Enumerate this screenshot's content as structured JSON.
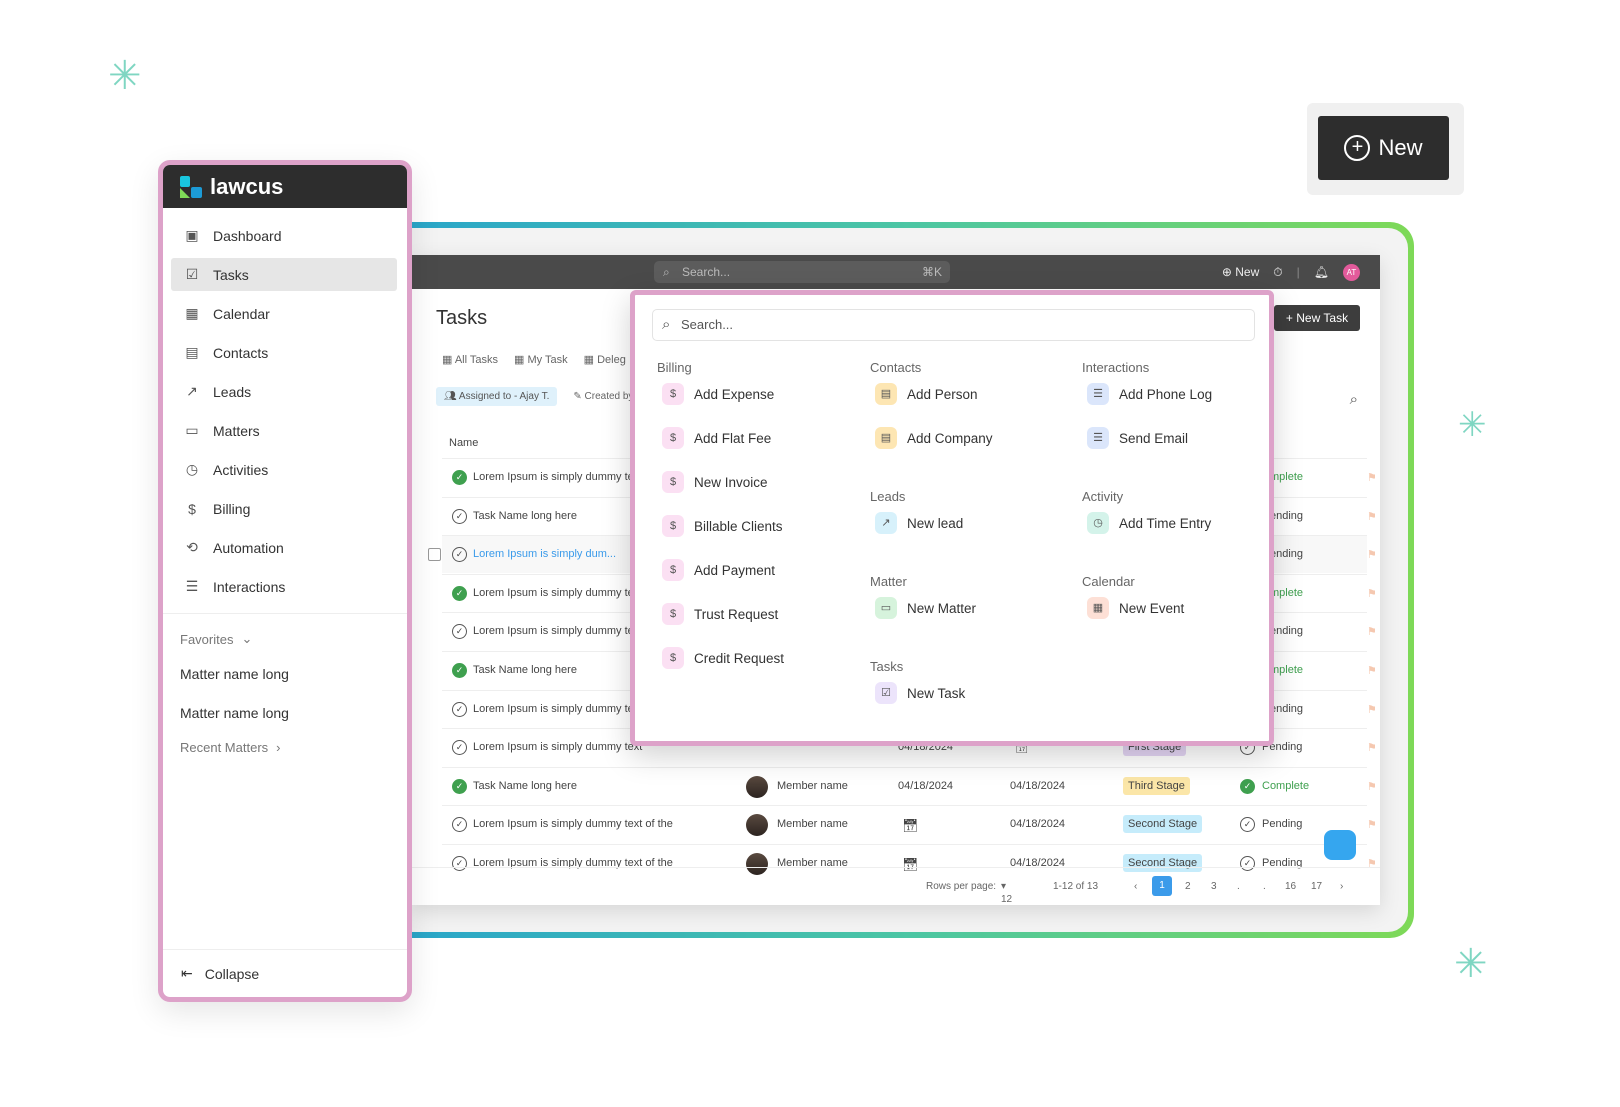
{
  "colors": {
    "accent_pink": "#dda2c9",
    "brand_dark": "#2d2d2d",
    "complete": "#3fa04f",
    "link": "#3b9bea",
    "frame_start": "#2aa6c9",
    "frame_end": "#7ed957"
  },
  "callout": {
    "label": "New",
    "icon": "plus-circle-icon"
  },
  "sidebar": {
    "brand": "lawcus",
    "items": [
      {
        "label": "Dashboard",
        "icon": "grid-icon",
        "active": false
      },
      {
        "label": "Tasks",
        "icon": "clipboard-check-icon",
        "active": true
      },
      {
        "label": "Calendar",
        "icon": "calendar-icon",
        "active": false
      },
      {
        "label": "Contacts",
        "icon": "contact-card-icon",
        "active": false
      },
      {
        "label": "Leads",
        "icon": "trend-up-icon",
        "active": false
      },
      {
        "label": "Matters",
        "icon": "briefcase-icon",
        "active": false
      },
      {
        "label": "Activities",
        "icon": "stopwatch-icon",
        "active": false
      },
      {
        "label": "Billing",
        "icon": "dollar-circle-icon",
        "active": false
      },
      {
        "label": "Automation",
        "icon": "repeat-icon",
        "active": false
      },
      {
        "label": "Interactions",
        "icon": "chat-icon",
        "active": false
      }
    ],
    "favorites_label": "Favorites",
    "favorites": [
      "Matter name long",
      "Matter name long"
    ],
    "recent_label": "Recent Matters",
    "collapse_label": "Collapse"
  },
  "topbar": {
    "search_placeholder": "Search...",
    "shortcut": "⌘K",
    "new_label": "New",
    "avatar": "AT"
  },
  "page": {
    "title": "Tasks",
    "new_task_label": "New Task",
    "tabs": [
      "All Tasks",
      "My Task",
      "Deleg"
    ],
    "filters": [
      "Assigned to - Ajay T.",
      "Created by"
    ],
    "column_name": "Name",
    "rows": [
      {
        "name": "Lorem Ipsum is simply dummy text",
        "done": true,
        "status": "mplete"
      },
      {
        "name": "Task Name long here",
        "done": false,
        "status": "ending"
      },
      {
        "name": "Lorem Ipsum is simply dum...",
        "done": false,
        "status": "ending",
        "selected": true
      },
      {
        "name": "Lorem Ipsum is simply dummy text",
        "done": true,
        "status": "mplete"
      },
      {
        "name": "Lorem Ipsum is simply dummy text",
        "done": false,
        "status": "ending"
      },
      {
        "name": "Task Name long here",
        "done": true,
        "status": "mplete"
      },
      {
        "name": "Lorem Ipsum is simply dummy text",
        "done": false,
        "status": "ending"
      },
      {
        "name": "Lorem Ipsum is simply dummy text",
        "done": false,
        "member": "",
        "due": "04/18/2024",
        "date": "",
        "stage": "First Stage",
        "status": "Pending"
      },
      {
        "name": "Task Name long here",
        "done": true,
        "member": "Member name",
        "due": "04/18/2024",
        "date": "04/18/2024",
        "stage": "Third Stage",
        "status": "Complete"
      },
      {
        "name": "Lorem Ipsum is simply dummy text of the",
        "done": false,
        "member": "Member name",
        "due": "",
        "date": "04/18/2024",
        "stage": "Second Stage",
        "status": "Pending"
      },
      {
        "name": "Lorem Ipsum is simply dummy text of the",
        "done": false,
        "member": "Member name",
        "due": "",
        "date": "04/18/2024",
        "stage": "Second Stage",
        "status": "Pending"
      }
    ],
    "pagination": {
      "rows_per_page_label": "Rows per page:",
      "rows_per_page": "12",
      "range": "1-12 of 13",
      "pages": [
        "1",
        "2",
        "3",
        ".",
        ".",
        "16",
        "17"
      ],
      "current": "1"
    }
  },
  "dropdown": {
    "search_placeholder": "Search...",
    "groups": [
      {
        "title": "Billing",
        "items": [
          "Add Expense",
          "Add Flat Fee",
          "New Invoice",
          "Billable Clients",
          "Add Payment",
          "Trust Request",
          "Credit Request"
        ]
      },
      {
        "title": "Contacts",
        "items": [
          "Add Person",
          "Add Company"
        ]
      },
      {
        "title": "Leads",
        "items": [
          "New lead"
        ]
      },
      {
        "title": "Matter",
        "items": [
          "New Matter"
        ]
      },
      {
        "title": "Tasks",
        "items": [
          "New Task"
        ]
      },
      {
        "title": "Interactions",
        "items": [
          "Add Phone Log",
          "Send Email"
        ]
      },
      {
        "title": "Activity",
        "items": [
          "Add Time Entry"
        ]
      },
      {
        "title": "Calendar",
        "items": [
          "New Event"
        ]
      }
    ]
  }
}
